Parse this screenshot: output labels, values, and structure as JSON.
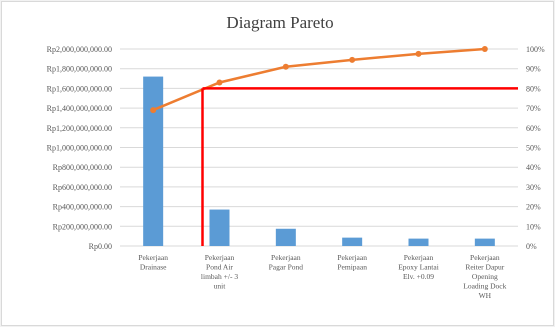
{
  "chart_data": {
    "type": "bar",
    "title": "Diagram Pareto",
    "categories": [
      [
        "Pekerjaan",
        "Drainase"
      ],
      [
        "Pekerjaan",
        "Pond Air",
        "limbah +/- 3",
        "unit"
      ],
      [
        "Pekerjaan",
        "Pagar Pond"
      ],
      [
        "Pekerjaan",
        "Pemipaan"
      ],
      [
        "Pekerjaan",
        "Epoxy Lantai",
        "Elv. +0.09"
      ],
      [
        "Pekerjaan",
        "Reiter Dapur",
        "Opening",
        "Loading Dock",
        "WH"
      ]
    ],
    "series": [
      {
        "type": "bar",
        "values": [
          1720000000,
          370000000,
          175000000,
          85000000,
          75000000,
          75000000
        ],
        "color": "#5b9bd5"
      },
      {
        "type": "line",
        "values": [
          0.69,
          0.83,
          0.91,
          0.945,
          0.975,
          1.0
        ],
        "color": "#ed7d31",
        "axis": "right"
      }
    ],
    "y_left": {
      "ylim": [
        0,
        2000000000
      ],
      "ticks": [
        "Rp0.00",
        "Rp200,000,000.00",
        "Rp400,000,000.00",
        "Rp600,000,000.00",
        "Rp800,000,000.00",
        "Rp1,000,000,000.00",
        "Rp1,200,000,000.00",
        "Rp1,400,000,000.00",
        "Rp1,600,000,000.00",
        "Rp1,800,000,000.00",
        "Rp2,000,000,000.00"
      ]
    },
    "y_right": {
      "ylim": [
        0,
        1
      ],
      "ticks": [
        "0%",
        "10%",
        "20%",
        "30%",
        "40%",
        "50%",
        "60%",
        "70%",
        "80%",
        "90%",
        "100%"
      ]
    },
    "reference_line": {
      "y": 0.8,
      "x_category_index": 1,
      "color": "#ff0000"
    },
    "grid": true,
    "legend": "none"
  }
}
